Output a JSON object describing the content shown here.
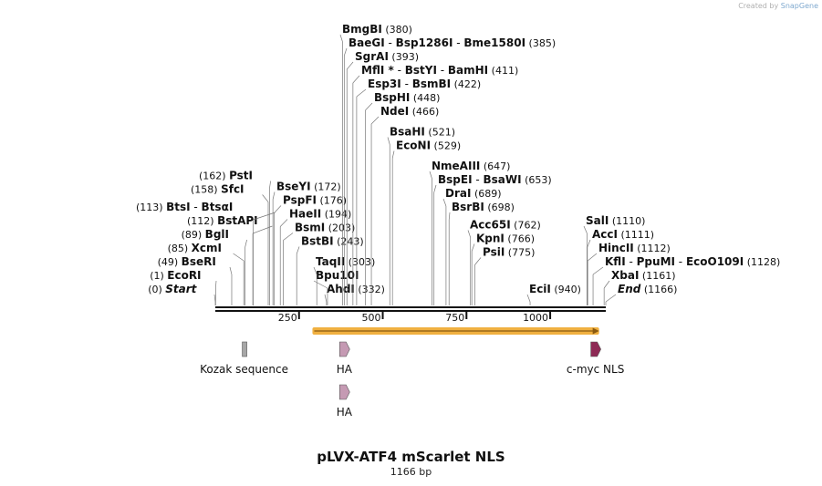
{
  "credit": {
    "prefix": "Created by",
    "brand": "SnapGene"
  },
  "title": "pLVX-ATF4 mScarlet NLS",
  "length_label": "1166 bp",
  "sequence_length": 1166,
  "ticks": [
    {
      "pos": 250,
      "label": "250"
    },
    {
      "pos": 500,
      "label": "500"
    },
    {
      "pos": 750,
      "label": "750"
    },
    {
      "pos": 1000,
      "label": "1000"
    }
  ],
  "sites": [
    {
      "id": "ecori",
      "side": "left",
      "level": 0,
      "names": [
        "EcoRI"
      ],
      "pos_label": "(1)",
      "pos": 1
    },
    {
      "id": "start",
      "side": "left",
      "level": -1,
      "names": [
        "Start"
      ],
      "pos_label": "(0)",
      "pos": 0,
      "italic": true
    },
    {
      "id": "bseri",
      "side": "left",
      "level": 1,
      "names": [
        "BseRI"
      ],
      "pos_label": "(49)",
      "pos": 49
    },
    {
      "id": "xcmi",
      "side": "left",
      "level": 2,
      "names": [
        "XcmI"
      ],
      "pos_label": "(85)",
      "pos": 85
    },
    {
      "id": "bgli",
      "side": "left",
      "level": 3,
      "names": [
        "BglI"
      ],
      "pos_label": "(89)",
      "pos": 89
    },
    {
      "id": "bstapi",
      "side": "left",
      "level": 4,
      "names": [
        "BstAPI"
      ],
      "pos_label": "(112)",
      "pos": 112
    },
    {
      "id": "btsi",
      "side": "left",
      "level": 5,
      "names": [
        "BtsI",
        "BtsαI"
      ],
      "pos_label": "(113)",
      "pos": 113
    },
    {
      "id": "sfci",
      "side": "left",
      "level": 6.3,
      "names": [
        "SfcI"
      ],
      "pos_label": "(158)",
      "pos": 158
    },
    {
      "id": "psti",
      "side": "left",
      "level": 7.3,
      "names": [
        "PstI"
      ],
      "pos_label": "(162)",
      "pos": 162
    },
    {
      "id": "ahdi",
      "side": "right",
      "level": -1,
      "names": [
        "AhdI"
      ],
      "pos_label": "(332)",
      "pos": 332
    },
    {
      "id": "bpu10i",
      "side": "right",
      "level": 0,
      "names": [
        "Bpu10I"
      ],
      "pos_label": "",
      "pos": 335
    },
    {
      "id": "taqii",
      "side": "right",
      "level": 1,
      "names": [
        "TaqII"
      ],
      "pos_label": "(303)",
      "pos": 303
    },
    {
      "id": "bstbi",
      "side": "right",
      "level": 2.5,
      "names": [
        "BstBI"
      ],
      "pos_label": "(243)",
      "pos": 243
    },
    {
      "id": "bsmi",
      "side": "right",
      "level": 3.5,
      "names": [
        "BsmI"
      ],
      "pos_label": "(203)",
      "pos": 203
    },
    {
      "id": "haeii",
      "side": "right",
      "level": 4.5,
      "names": [
        "HaeII"
      ],
      "pos_label": "(194)",
      "pos": 194
    },
    {
      "id": "pspfi",
      "side": "right",
      "level": 5.5,
      "names": [
        "PspFI"
      ],
      "pos_label": "(176)",
      "pos": 176
    },
    {
      "id": "bseyi",
      "side": "right",
      "level": 6.5,
      "names": [
        "BseYI"
      ],
      "pos_label": "(172)",
      "pos": 172
    },
    {
      "id": "econi",
      "side": "right",
      "level": 9.5,
      "names": [
        "EcoNI"
      ],
      "pos_label": "(529)",
      "pos": 529
    },
    {
      "id": "bsahi",
      "side": "right",
      "level": 10.5,
      "names": [
        "BsaHI"
      ],
      "pos_label": "(521)",
      "pos": 521
    },
    {
      "id": "ndei",
      "side": "right",
      "level": 12,
      "names": [
        "NdeI"
      ],
      "pos_label": "(466)",
      "pos": 466
    },
    {
      "id": "bsphi",
      "side": "right",
      "level": 13,
      "names": [
        "BspHI"
      ],
      "pos_label": "(448)",
      "pos": 448
    },
    {
      "id": "esp3i",
      "side": "right",
      "level": 14,
      "names": [
        "Esp3I",
        "BsmBI"
      ],
      "pos_label": "(422)",
      "pos": 422
    },
    {
      "id": "mfli",
      "side": "right",
      "level": 15,
      "names": [
        "MflI *",
        "BstYI",
        "BamHI"
      ],
      "pos_label": "(411)",
      "pos": 411
    },
    {
      "id": "sgrai",
      "side": "right",
      "level": 16,
      "names": [
        "SgrAI"
      ],
      "pos_label": "(393)",
      "pos": 393
    },
    {
      "id": "baegi",
      "side": "right",
      "level": 17,
      "names": [
        "BaeGI",
        "Bsp1286I",
        "Bme1580I"
      ],
      "pos_label": "(385)",
      "pos": 385
    },
    {
      "id": "bmgbi",
      "side": "right",
      "level": 18,
      "names": [
        "BmgBI"
      ],
      "pos_label": "(380)",
      "pos": 380
    },
    {
      "id": "psii",
      "side": "right",
      "level": 1.7,
      "names": [
        "PsiI"
      ],
      "pos_label": "(775)",
      "pos": 775
    },
    {
      "id": "kpni",
      "side": "right",
      "level": 2.7,
      "names": [
        "KpnI"
      ],
      "pos_label": "(766)",
      "pos": 766
    },
    {
      "id": "acc65i",
      "side": "right",
      "level": 3.7,
      "names": [
        "Acc65I"
      ],
      "pos_label": "(762)",
      "pos": 762
    },
    {
      "id": "bsrbi",
      "side": "right",
      "level": 5,
      "names": [
        "BsrBI"
      ],
      "pos_label": "(698)",
      "pos": 698
    },
    {
      "id": "drai",
      "side": "right",
      "level": 6,
      "names": [
        "DraI"
      ],
      "pos_label": "(689)",
      "pos": 689
    },
    {
      "id": "bspei",
      "side": "right",
      "level": 7,
      "names": [
        "BspEI",
        "BsaWI"
      ],
      "pos_label": "(653)",
      "pos": 653
    },
    {
      "id": "nmeaiii",
      "side": "right",
      "level": 8,
      "names": [
        "NmeAIII"
      ],
      "pos_label": "(647)",
      "pos": 647
    },
    {
      "id": "ecii",
      "side": "right",
      "level": -1,
      "names": [
        "EciI"
      ],
      "pos_label": "(940)",
      "pos": 940
    },
    {
      "id": "end",
      "side": "right",
      "level": -1,
      "names": [
        "End"
      ],
      "pos_label": "(1166)",
      "pos": 1166,
      "italic": true
    },
    {
      "id": "xbai",
      "side": "right",
      "level": 0,
      "names": [
        "XbaI"
      ],
      "pos_label": "(1161)",
      "pos": 1161
    },
    {
      "id": "kfli",
      "side": "right",
      "level": 1,
      "names": [
        "KflI",
        "PpuMI",
        "EcoO109I"
      ],
      "pos_label": "(1128)",
      "pos": 1128
    },
    {
      "id": "hincii",
      "side": "right",
      "level": 2,
      "names": [
        "HincII"
      ],
      "pos_label": "(1112)",
      "pos": 1112
    },
    {
      "id": "acci",
      "side": "right",
      "level": 3,
      "names": [
        "AccI"
      ],
      "pos_label": "(1111)",
      "pos": 1111
    },
    {
      "id": "sali",
      "side": "right",
      "level": 4,
      "names": [
        "SalI"
      ],
      "pos_label": "(1110)",
      "pos": 1110
    }
  ],
  "features": [
    {
      "id": "kozak",
      "label": "Kozak sequence",
      "pos": 86,
      "type": "box",
      "color": "#a6a6a6",
      "row": 0
    },
    {
      "id": "ha1",
      "label": "HA",
      "pos": 385,
      "type": "arrow",
      "color": "#c59ab3",
      "row": 0
    },
    {
      "id": "cmyc",
      "label": "c-myc NLS",
      "pos": 1135,
      "type": "arrow",
      "color": "#8e2a55",
      "row": 0
    },
    {
      "id": "ha2",
      "label": "HA",
      "pos": 385,
      "type": "arrow",
      "color": "#c59ab3",
      "row": 1
    }
  ],
  "orf": {
    "start": 290,
    "end": 1146,
    "color": "#f0b040",
    "arrow_color": "#8a5a10"
  }
}
